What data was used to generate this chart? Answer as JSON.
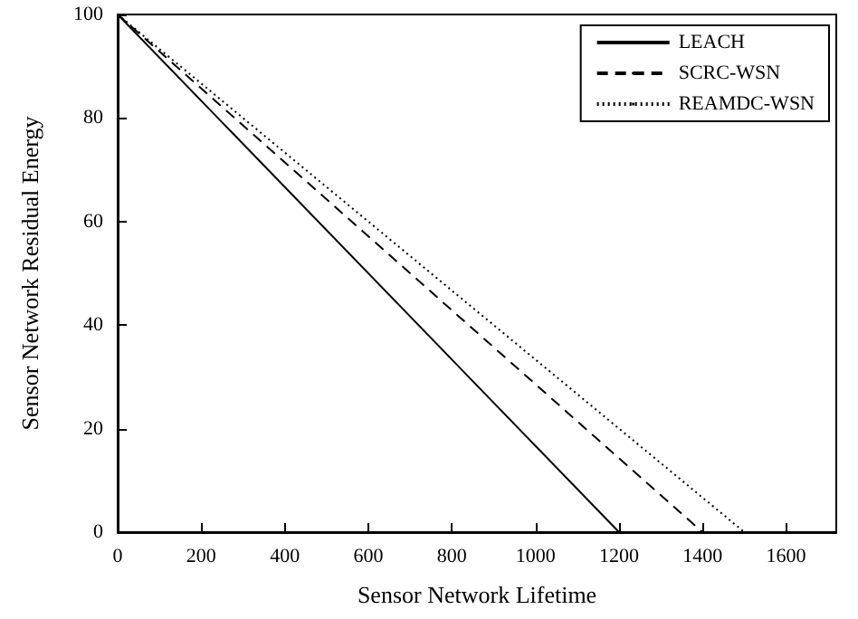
{
  "chart_data": {
    "type": "line",
    "xlabel": "Sensor Network Lifetime",
    "ylabel": "Sensor Network Residual Energy",
    "xlim": [
      0,
      1720
    ],
    "xticks": [
      0,
      200,
      400,
      600,
      800,
      1000,
      1200,
      1400,
      1600
    ],
    "ylim": [
      0,
      100
    ],
    "yticks": [
      0,
      20,
      40,
      60,
      80,
      100
    ],
    "grid": false,
    "legend": "top right",
    "marker": "none",
    "series": [
      {
        "name": "LEACH",
        "color": "#000000",
        "line_style": "solid",
        "x": [
          0,
          1200
        ],
        "values": [
          100,
          0
        ]
      },
      {
        "name": "SCRC-WSN",
        "color": "#000000",
        "line_style": "dashed",
        "x": [
          0,
          1400
        ],
        "values": [
          100,
          0
        ]
      },
      {
        "name": "REAMDC-WSN",
        "color": "#000000",
        "line_style": "dotted",
        "x": [
          0,
          1500
        ],
        "values": [
          100,
          0
        ]
      }
    ]
  }
}
